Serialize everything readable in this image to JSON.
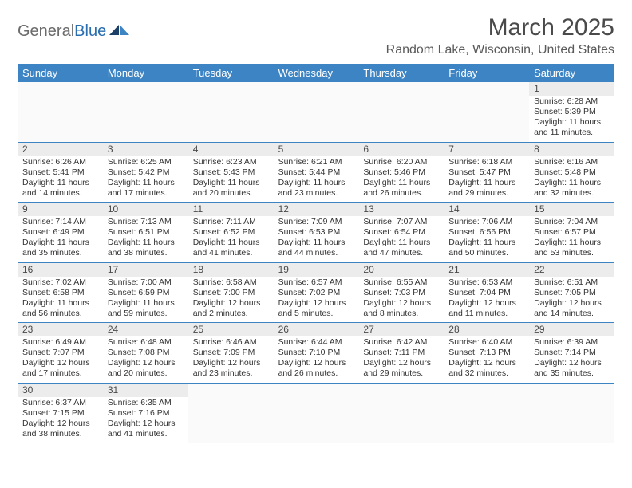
{
  "logo": {
    "text_gray": "General",
    "text_blue": "Blue"
  },
  "header": {
    "month_title": "March 2025",
    "location": "Random Lake, Wisconsin, United States"
  },
  "colors": {
    "header_bar": "#3d84c4",
    "header_text": "#ffffff",
    "day_num_bg": "#ececec",
    "row_border": "#3d84c4",
    "body_text": "#333333",
    "title_text": "#4a4a4a"
  },
  "day_labels": [
    "Sunday",
    "Monday",
    "Tuesday",
    "Wednesday",
    "Thursday",
    "Friday",
    "Saturday"
  ],
  "weeks": [
    [
      null,
      null,
      null,
      null,
      null,
      null,
      {
        "n": "1",
        "sunrise": "Sunrise: 6:28 AM",
        "sunset": "Sunset: 5:39 PM",
        "daylight": "Daylight: 11 hours and 11 minutes."
      }
    ],
    [
      {
        "n": "2",
        "sunrise": "Sunrise: 6:26 AM",
        "sunset": "Sunset: 5:41 PM",
        "daylight": "Daylight: 11 hours and 14 minutes."
      },
      {
        "n": "3",
        "sunrise": "Sunrise: 6:25 AM",
        "sunset": "Sunset: 5:42 PM",
        "daylight": "Daylight: 11 hours and 17 minutes."
      },
      {
        "n": "4",
        "sunrise": "Sunrise: 6:23 AM",
        "sunset": "Sunset: 5:43 PM",
        "daylight": "Daylight: 11 hours and 20 minutes."
      },
      {
        "n": "5",
        "sunrise": "Sunrise: 6:21 AM",
        "sunset": "Sunset: 5:44 PM",
        "daylight": "Daylight: 11 hours and 23 minutes."
      },
      {
        "n": "6",
        "sunrise": "Sunrise: 6:20 AM",
        "sunset": "Sunset: 5:46 PM",
        "daylight": "Daylight: 11 hours and 26 minutes."
      },
      {
        "n": "7",
        "sunrise": "Sunrise: 6:18 AM",
        "sunset": "Sunset: 5:47 PM",
        "daylight": "Daylight: 11 hours and 29 minutes."
      },
      {
        "n": "8",
        "sunrise": "Sunrise: 6:16 AM",
        "sunset": "Sunset: 5:48 PM",
        "daylight": "Daylight: 11 hours and 32 minutes."
      }
    ],
    [
      {
        "n": "9",
        "sunrise": "Sunrise: 7:14 AM",
        "sunset": "Sunset: 6:49 PM",
        "daylight": "Daylight: 11 hours and 35 minutes."
      },
      {
        "n": "10",
        "sunrise": "Sunrise: 7:13 AM",
        "sunset": "Sunset: 6:51 PM",
        "daylight": "Daylight: 11 hours and 38 minutes."
      },
      {
        "n": "11",
        "sunrise": "Sunrise: 7:11 AM",
        "sunset": "Sunset: 6:52 PM",
        "daylight": "Daylight: 11 hours and 41 minutes."
      },
      {
        "n": "12",
        "sunrise": "Sunrise: 7:09 AM",
        "sunset": "Sunset: 6:53 PM",
        "daylight": "Daylight: 11 hours and 44 minutes."
      },
      {
        "n": "13",
        "sunrise": "Sunrise: 7:07 AM",
        "sunset": "Sunset: 6:54 PM",
        "daylight": "Daylight: 11 hours and 47 minutes."
      },
      {
        "n": "14",
        "sunrise": "Sunrise: 7:06 AM",
        "sunset": "Sunset: 6:56 PM",
        "daylight": "Daylight: 11 hours and 50 minutes."
      },
      {
        "n": "15",
        "sunrise": "Sunrise: 7:04 AM",
        "sunset": "Sunset: 6:57 PM",
        "daylight": "Daylight: 11 hours and 53 minutes."
      }
    ],
    [
      {
        "n": "16",
        "sunrise": "Sunrise: 7:02 AM",
        "sunset": "Sunset: 6:58 PM",
        "daylight": "Daylight: 11 hours and 56 minutes."
      },
      {
        "n": "17",
        "sunrise": "Sunrise: 7:00 AM",
        "sunset": "Sunset: 6:59 PM",
        "daylight": "Daylight: 11 hours and 59 minutes."
      },
      {
        "n": "18",
        "sunrise": "Sunrise: 6:58 AM",
        "sunset": "Sunset: 7:00 PM",
        "daylight": "Daylight: 12 hours and 2 minutes."
      },
      {
        "n": "19",
        "sunrise": "Sunrise: 6:57 AM",
        "sunset": "Sunset: 7:02 PM",
        "daylight": "Daylight: 12 hours and 5 minutes."
      },
      {
        "n": "20",
        "sunrise": "Sunrise: 6:55 AM",
        "sunset": "Sunset: 7:03 PM",
        "daylight": "Daylight: 12 hours and 8 minutes."
      },
      {
        "n": "21",
        "sunrise": "Sunrise: 6:53 AM",
        "sunset": "Sunset: 7:04 PM",
        "daylight": "Daylight: 12 hours and 11 minutes."
      },
      {
        "n": "22",
        "sunrise": "Sunrise: 6:51 AM",
        "sunset": "Sunset: 7:05 PM",
        "daylight": "Daylight: 12 hours and 14 minutes."
      }
    ],
    [
      {
        "n": "23",
        "sunrise": "Sunrise: 6:49 AM",
        "sunset": "Sunset: 7:07 PM",
        "daylight": "Daylight: 12 hours and 17 minutes."
      },
      {
        "n": "24",
        "sunrise": "Sunrise: 6:48 AM",
        "sunset": "Sunset: 7:08 PM",
        "daylight": "Daylight: 12 hours and 20 minutes."
      },
      {
        "n": "25",
        "sunrise": "Sunrise: 6:46 AM",
        "sunset": "Sunset: 7:09 PM",
        "daylight": "Daylight: 12 hours and 23 minutes."
      },
      {
        "n": "26",
        "sunrise": "Sunrise: 6:44 AM",
        "sunset": "Sunset: 7:10 PM",
        "daylight": "Daylight: 12 hours and 26 minutes."
      },
      {
        "n": "27",
        "sunrise": "Sunrise: 6:42 AM",
        "sunset": "Sunset: 7:11 PM",
        "daylight": "Daylight: 12 hours and 29 minutes."
      },
      {
        "n": "28",
        "sunrise": "Sunrise: 6:40 AM",
        "sunset": "Sunset: 7:13 PM",
        "daylight": "Daylight: 12 hours and 32 minutes."
      },
      {
        "n": "29",
        "sunrise": "Sunrise: 6:39 AM",
        "sunset": "Sunset: 7:14 PM",
        "daylight": "Daylight: 12 hours and 35 minutes."
      }
    ],
    [
      {
        "n": "30",
        "sunrise": "Sunrise: 6:37 AM",
        "sunset": "Sunset: 7:15 PM",
        "daylight": "Daylight: 12 hours and 38 minutes."
      },
      {
        "n": "31",
        "sunrise": "Sunrise: 6:35 AM",
        "sunset": "Sunset: 7:16 PM",
        "daylight": "Daylight: 12 hours and 41 minutes."
      },
      null,
      null,
      null,
      null,
      null
    ]
  ]
}
